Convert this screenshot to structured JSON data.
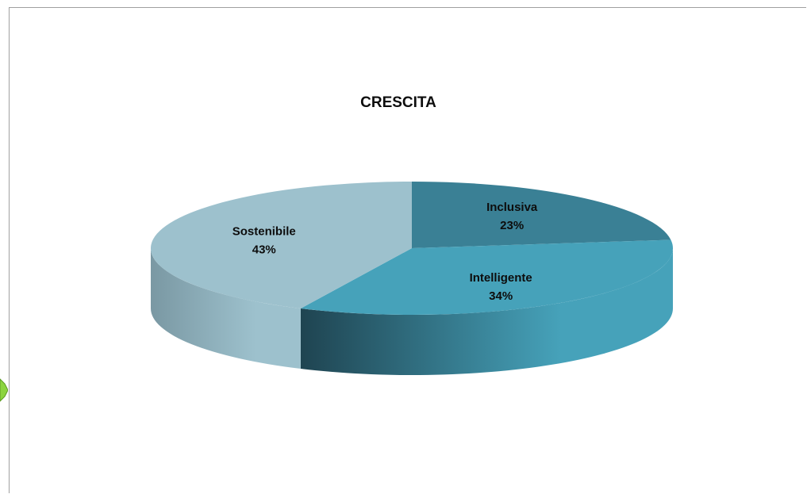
{
  "chart_data": {
    "type": "pie",
    "title": "CRESCITA",
    "categories": [
      "Inclusiva",
      "Intelligente",
      "Sostenibile"
    ],
    "values": [
      23,
      34,
      43
    ],
    "labels": [
      "23%",
      "34%",
      "43%"
    ],
    "colors": [
      "#3a8095",
      "#46a2ba",
      "#9dc1cd"
    ],
    "side_dark_colors": [
      "#1f4451",
      "#1f4451",
      "#7a98a3"
    ],
    "legend": "none",
    "style": "3d"
  }
}
